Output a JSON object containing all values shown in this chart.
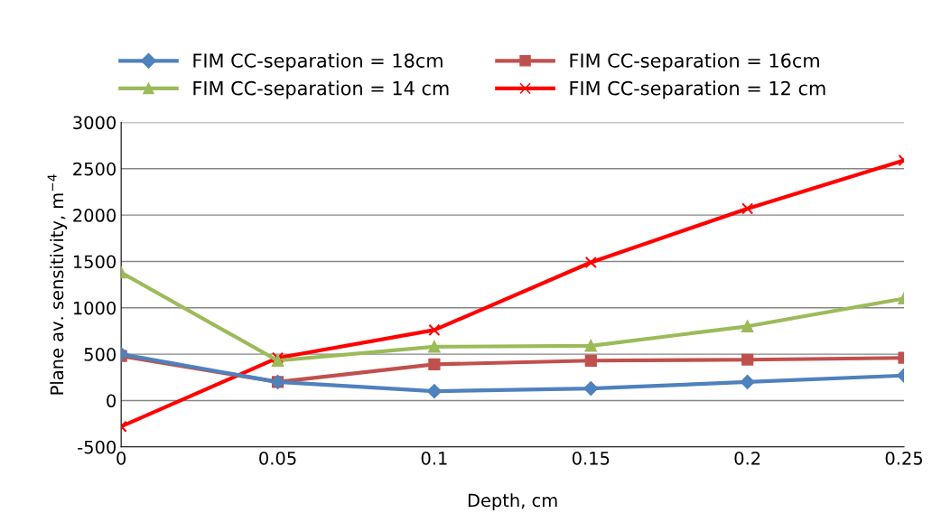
{
  "chart_data": {
    "type": "line",
    "xlabel": "Depth, cm",
    "ylabel": "Plane av. sensitivity, m$^{−4}$",
    "x": [
      0,
      0.05,
      0.1,
      0.15,
      0.2,
      0.25
    ],
    "xlim": [
      0,
      0.25
    ],
    "xticks": [
      0,
      0.05,
      0.1,
      0.15,
      0.2,
      0.25
    ],
    "ylim": [
      -500,
      3000
    ],
    "yticks": [
      -500,
      0,
      500,
      1000,
      1500,
      2000,
      2500,
      3000
    ],
    "grid": "y",
    "legend": "top",
    "line_style": "solid",
    "series": [
      {
        "name": "FIM CC-separation = 18cm",
        "color": "#4f81bd",
        "marker": "diamond",
        "values": [
          500,
          200,
          100,
          130,
          200,
          270
        ]
      },
      {
        "name": "FIM CC-separation = 16cm",
        "color": "#c0504d",
        "marker": "square",
        "values": [
          480,
          200,
          390,
          430,
          440,
          460
        ]
      },
      {
        "name": "FIM CC-separation = 14 cm",
        "color": "#9bbb59",
        "marker": "triangle",
        "values": [
          1380,
          430,
          580,
          590,
          800,
          1100
        ]
      },
      {
        "name": "FIM CC-separation = 12 cm",
        "color": "#ff0000",
        "marker": "cross",
        "values": [
          -280,
          460,
          760,
          1490,
          2070,
          2590
        ]
      }
    ]
  }
}
